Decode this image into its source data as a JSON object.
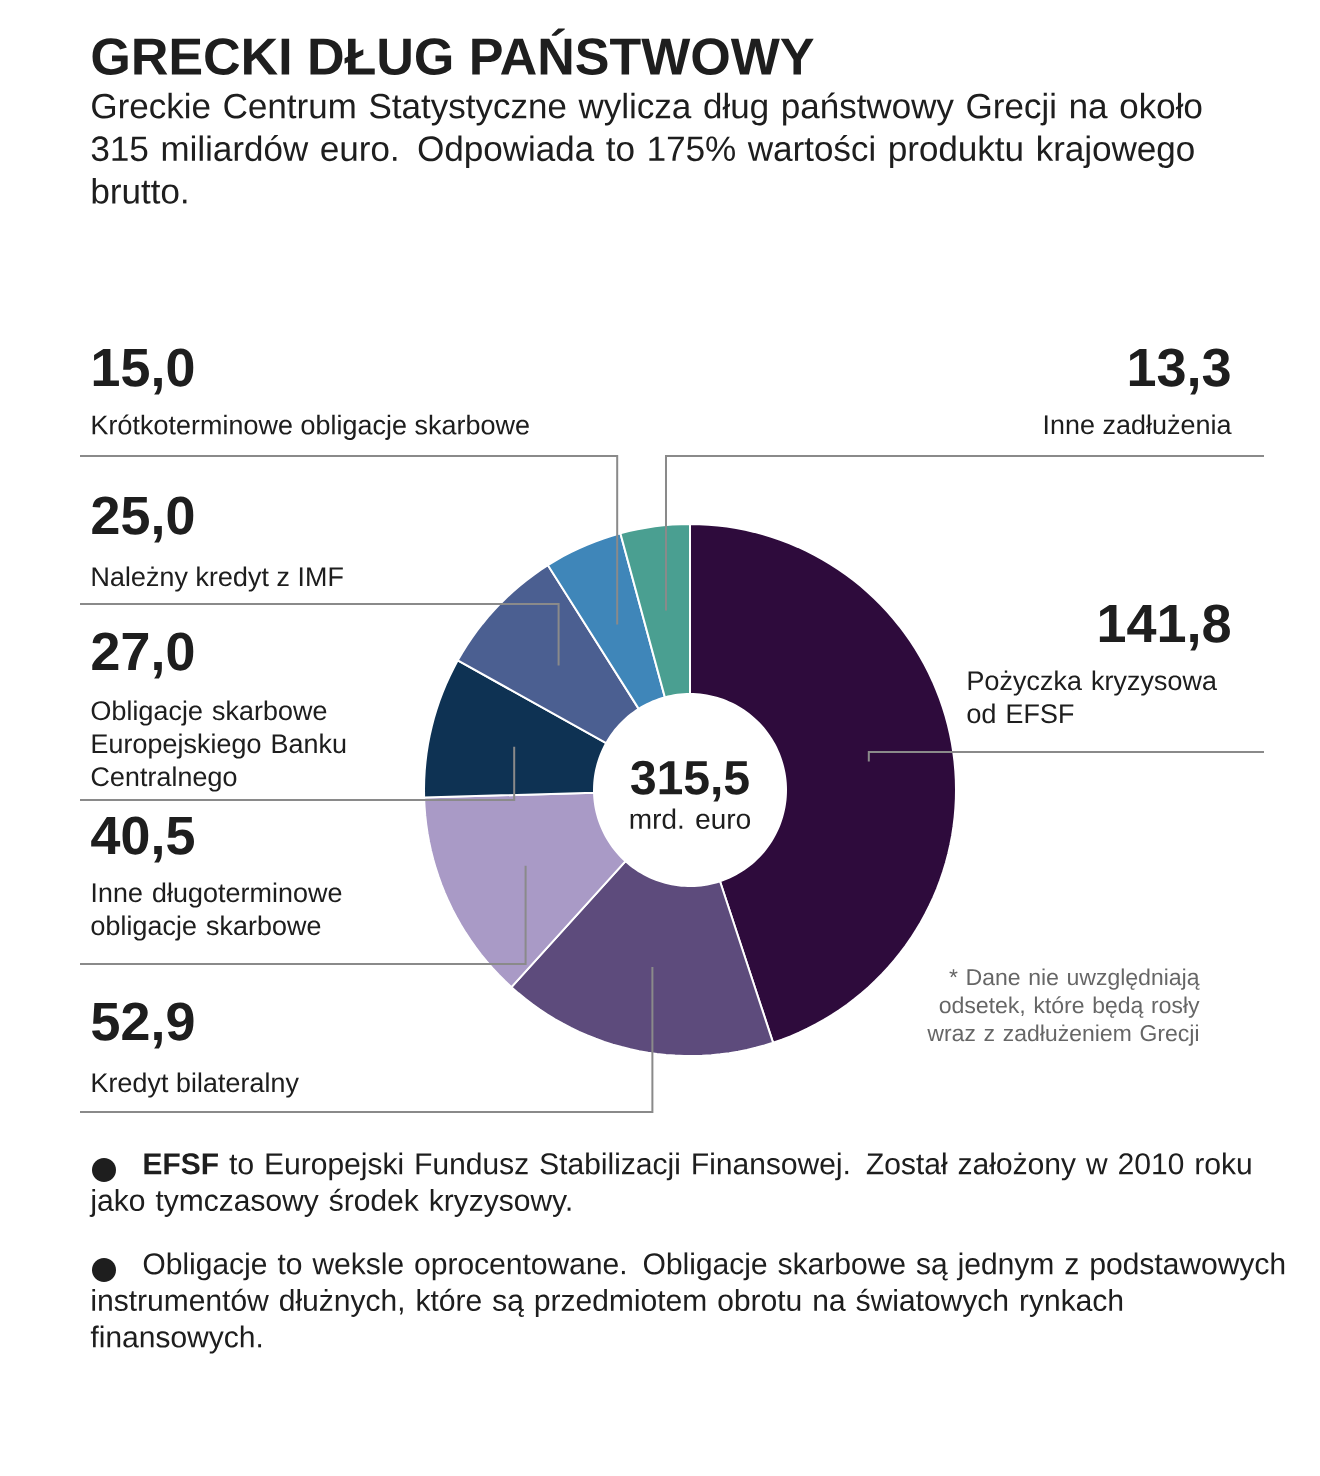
{
  "chart_data": {
    "type": "donut",
    "title": "GRECKI DŁUG PAŃSTWOWY",
    "subtitle": "Greckie Centrum Statystyczne wylicza dług państwowy Grecji na około 315 miliardów euro. Odpowiada to 175% wartości produktu krajowego brutto.",
    "categories": [
      "Pożyczka kryzysowa od EFSF",
      "Kredyt bilateralny",
      "Inne długoterminowe obligacje skarbowe",
      "Obligacje skarbowe Europejskiego Banku Centralnego",
      "Należny kredyt z IMF",
      "Krótkoterminowe obligacje skarbowe",
      "Inne zadłużenia"
    ],
    "values": [
      141.8,
      52.9,
      40.5,
      27.0,
      25.0,
      15.0,
      13.3
    ],
    "value_labels": [
      "141,8",
      "52,9",
      "40,5",
      "27,0",
      "25,0",
      "15,0",
      "13,3"
    ],
    "colors": [
      "#2e0b3c",
      "#5d4b7c",
      "#a99ac6",
      "#0e3253",
      "#4b5f91",
      "#3f86b9",
      "#4a9f91"
    ],
    "annotations": [
      "315,5",
      "mrd. euro",
      "* Dane nie uwzględniają odsetek, które będą rosły wraz z zadłużeniem Grecji",
      "**EFSF** to Europejski Fundusz Stabilizacji Finansowej. Został założony w 2010 roku jako tymczasowy środek kryzysowy.",
      "Obligacje to weksle oprocentowane. Obligacje skarbowe są jednym z podstawowych instrumentów dłużnych, które są przedmiotem obrotu na światowych rynkach finansowych."
    ]
  }
}
